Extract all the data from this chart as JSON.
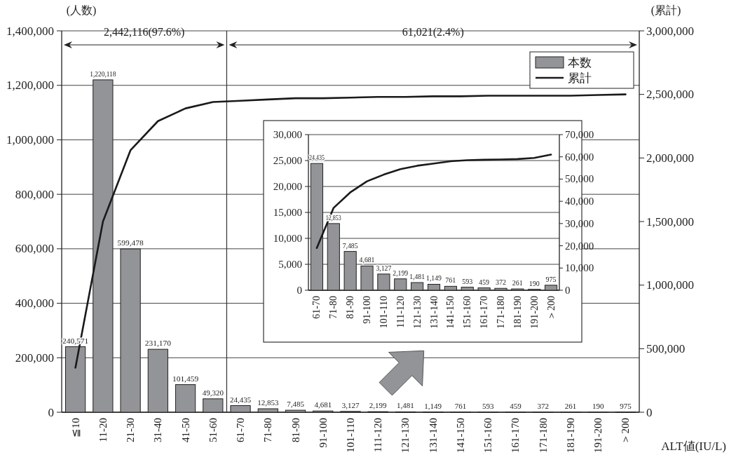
{
  "chart_data": [
    {
      "type": "bar",
      "ylabel": "(人数)",
      "y2label": "(累計)",
      "xlabel": "ALT値(IU/L)",
      "categories": [
        "≦10",
        "11-20",
        "21-30",
        "31-40",
        "41-50",
        "51-60",
        "61-70",
        "71-80",
        "81-90",
        "91-100",
        "101-110",
        "111-120",
        "121-130",
        "131-140",
        "141-150",
        "151-160",
        "161-170",
        "171-180",
        "181-190",
        "191-200",
        "＞200"
      ],
      "series": [
        {
          "name": "本数",
          "type": "bar",
          "color": "#929497",
          "values": [
            240571,
            1220118,
            599478,
            231170,
            101459,
            49320,
            24435,
            12853,
            7485,
            4681,
            3127,
            2199,
            1481,
            1149,
            761,
            593,
            459,
            372,
            261,
            190,
            975
          ],
          "value_labels": [
            "240,571",
            "1,220,118",
            "599,478",
            "231,170",
            "101,459",
            "49,320",
            "24,435",
            "12,853",
            "7,485",
            "4,681",
            "3,127",
            "2,199",
            "1,481",
            "1,149",
            "761",
            "593",
            "459",
            "372",
            "261",
            "190",
            "975"
          ]
        },
        {
          "name": "累計",
          "type": "line",
          "axis": "y2",
          "color": "#1a1a1a",
          "values": [
            350000,
            1500000,
            2060000,
            2290000,
            2390000,
            2440000,
            2450000,
            2460000,
            2470000,
            2470000,
            2475000,
            2480000,
            2480000,
            2485000,
            2485000,
            2490000,
            2490000,
            2490000,
            2490000,
            2495000,
            2500000
          ]
        }
      ],
      "ylim": [
        0,
        1400000
      ],
      "yticks": [
        {
          "value": 0,
          "label": "0"
        },
        {
          "value": 200000,
          "label": "200,000"
        },
        {
          "value": 400000,
          "label": "400,000"
        },
        {
          "value": 600000,
          "label": "600,000"
        },
        {
          "value": 800000,
          "label": "800,000"
        },
        {
          "value": 1000000,
          "label": "1,000,000"
        },
        {
          "value": 1200000,
          "label": "1,200,000"
        },
        {
          "value": 1400000,
          "label": "1,400,000"
        }
      ],
      "y2lim": [
        0,
        3000000
      ],
      "y2ticks": [
        {
          "value": 0,
          "label": "0"
        },
        {
          "value": 500000,
          "label": "500,000"
        },
        {
          "value": 1000000,
          "label": "1,000,000"
        },
        {
          "value": 1500000,
          "label": "1,500,000"
        },
        {
          "value": 2000000,
          "label": "2,000,000"
        },
        {
          "value": 2500000,
          "label": "2,500,000"
        },
        {
          "value": 3000000,
          "label": "3,000,000"
        }
      ],
      "annotations": [
        "2,442,116(97.6%)",
        "61,021(2.4%)"
      ],
      "ref_lines": [
        {
          "axis": "x",
          "value": "61-70"
        }
      ],
      "grid": "y",
      "legend": "top right"
    },
    {
      "type": "bar",
      "categories": [
        "61-70",
        "71-80",
        "81-90",
        "91-100",
        "101-110",
        "111-120",
        "121-130",
        "131-140",
        "141-150",
        "151-160",
        "161-170",
        "171-180",
        "181-190",
        "191-200",
        "＞200"
      ],
      "series": [
        {
          "type": "bar",
          "color": "#929497",
          "values": [
            24435,
            12853,
            7485,
            4681,
            3127,
            2199,
            1481,
            1149,
            761,
            593,
            459,
            372,
            261,
            190,
            975
          ],
          "value_labels": [
            "24,435",
            "12,853",
            "7,485",
            "4,681",
            "3,127",
            "2,199",
            "1,481",
            "1,149",
            "761",
            "593",
            "459",
            "372",
            "261",
            "190",
            "975"
          ]
        },
        {
          "type": "line",
          "axis": "y2",
          "color": "#1a1a1a",
          "values": [
            19000,
            37000,
            44000,
            49000,
            52000,
            54500,
            56000,
            57000,
            58000,
            58500,
            58700,
            58800,
            59000,
            59500,
            61000
          ]
        }
      ],
      "ylim": [
        0,
        30000
      ],
      "yticks": [
        {
          "value": 0,
          "label": "0"
        },
        {
          "value": 5000,
          "label": "5,000"
        },
        {
          "value": 10000,
          "label": "10,000"
        },
        {
          "value": 15000,
          "label": "15,000"
        },
        {
          "value": 20000,
          "label": "20,000"
        },
        {
          "value": 25000,
          "label": "25,000"
        },
        {
          "value": 30000,
          "label": "30,000"
        }
      ],
      "y2lim": [
        0,
        70000
      ],
      "y2ticks": [
        {
          "value": 0,
          "label": "0"
        },
        {
          "value": 10000,
          "label": "10,000"
        },
        {
          "value": 20000,
          "label": "20,000"
        },
        {
          "value": 30000,
          "label": "30,000"
        },
        {
          "value": 40000,
          "label": "40,000"
        },
        {
          "value": 50000,
          "label": "50,000"
        },
        {
          "value": 60000,
          "label": "60,000"
        },
        {
          "value": 70000,
          "label": "70,000"
        }
      ],
      "grid": "y"
    }
  ]
}
